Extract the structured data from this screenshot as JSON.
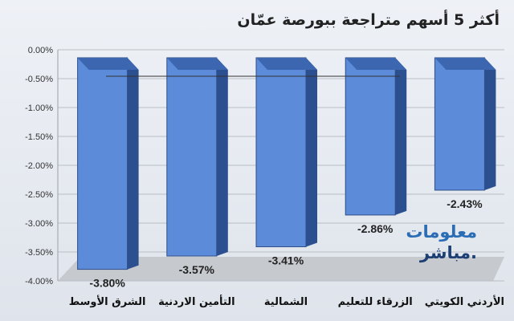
{
  "chart_data": {
    "type": "bar",
    "title": "أكثر 5 أسهم متراجعة ببورصة عمّان",
    "categories": [
      "الشرق الأوسط",
      "التأمين الاردنية",
      "الشمالية",
      "الزرقاء للتعليم",
      "الأردني الكويتي"
    ],
    "values": [
      -3.8,
      -3.57,
      -3.41,
      -2.86,
      -2.43
    ],
    "data_labels": [
      "-3.80%",
      "-3.57%",
      "-3.41%",
      "-2.86%",
      "-2.43%"
    ],
    "yticks": [
      "0.00%",
      "-0.50%",
      "-1.00%",
      "-1.50%",
      "-2.00%",
      "-2.50%",
      "-3.00%",
      "-3.50%",
      "-4.00%"
    ],
    "ylim": [
      -4.0,
      0.0
    ],
    "grid": true,
    "bar_color": "#5b8bd9",
    "xlabel": "",
    "ylabel": ""
  },
  "logo": {
    "line1": "معلومات",
    "line2": "مباشر."
  }
}
